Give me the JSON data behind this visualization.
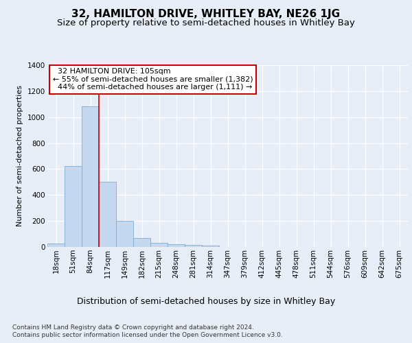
{
  "title": "32, HAMILTON DRIVE, WHITLEY BAY, NE26 1JG",
  "subtitle": "Size of property relative to semi-detached houses in Whitley Bay",
  "xlabel": "Distribution of semi-detached houses by size in Whitley Bay",
  "ylabel": "Number of semi-detached properties",
  "footer_line1": "Contains HM Land Registry data © Crown copyright and database right 2024.",
  "footer_line2": "Contains public sector information licensed under the Open Government Licence v3.0.",
  "bin_labels": [
    "18sqm",
    "51sqm",
    "84sqm",
    "117sqm",
    "149sqm",
    "182sqm",
    "215sqm",
    "248sqm",
    "281sqm",
    "314sqm",
    "347sqm",
    "379sqm",
    "412sqm",
    "445sqm",
    "478sqm",
    "511sqm",
    "544sqm",
    "576sqm",
    "609sqm",
    "642sqm",
    "675sqm"
  ],
  "bar_values": [
    25,
    625,
    1085,
    500,
    200,
    70,
    32,
    20,
    15,
    10,
    0,
    0,
    0,
    0,
    0,
    0,
    0,
    0,
    0,
    0,
    0
  ],
  "bar_color": "#c5d8f0",
  "bar_edge_color": "#7aadd4",
  "property_size": 105,
  "property_label": "32 HAMILTON DRIVE: 105sqm",
  "pct_smaller": 55,
  "count_smaller": 1382,
  "pct_larger": 44,
  "count_larger": 1111,
  "vline_color": "#cc0000",
  "vline_bin_index": 2.5,
  "annotation_box_color": "#ffffff",
  "annotation_box_edge": "#cc0000",
  "ylim": [
    0,
    1400
  ],
  "yticks": [
    0,
    200,
    400,
    600,
    800,
    1000,
    1200,
    1400
  ],
  "background_color": "#e8eef8",
  "plot_background": "#e8eef8",
  "title_fontsize": 11,
  "subtitle_fontsize": 9.5,
  "xlabel_fontsize": 9,
  "ylabel_fontsize": 8,
  "tick_fontsize": 7.5,
  "annotation_fontsize": 8,
  "footer_fontsize": 6.5
}
